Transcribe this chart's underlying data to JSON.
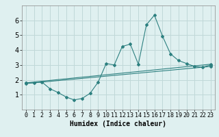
{
  "xlabel": "Humidex (Indice chaleur)",
  "ylabel": "",
  "bg_color": "#dff0f0",
  "grid_color": "#c0d8d8",
  "line_color": "#2d8080",
  "xlim": [
    -0.5,
    23.5
  ],
  "ylim": [
    0,
    7
  ],
  "x_ticks": [
    0,
    1,
    2,
    3,
    4,
    5,
    6,
    7,
    8,
    9,
    10,
    11,
    12,
    13,
    14,
    15,
    16,
    17,
    18,
    19,
    20,
    21,
    22,
    23
  ],
  "y_ticks": [
    1,
    2,
    3,
    4,
    5,
    6
  ],
  "curve1_x": [
    0,
    1,
    2,
    3,
    4,
    5,
    6,
    7,
    8,
    9,
    10,
    11,
    12,
    13,
    14,
    15,
    16,
    17,
    18,
    19,
    20,
    21,
    22,
    23
  ],
  "curve1_y": [
    1.8,
    1.8,
    1.85,
    1.4,
    1.15,
    0.85,
    0.65,
    0.75,
    1.1,
    1.85,
    3.1,
    3.0,
    4.25,
    4.4,
    3.05,
    5.7,
    6.35,
    4.95,
    3.75,
    3.3,
    3.1,
    2.9,
    2.85,
    3.0
  ],
  "curve2_x": [
    0,
    23
  ],
  "curve2_y": [
    1.8,
    3.05
  ],
  "curve3_x": [
    0,
    23
  ],
  "curve3_y": [
    1.75,
    2.9
  ],
  "tick_fontsize": 6,
  "xlabel_fontsize": 7
}
